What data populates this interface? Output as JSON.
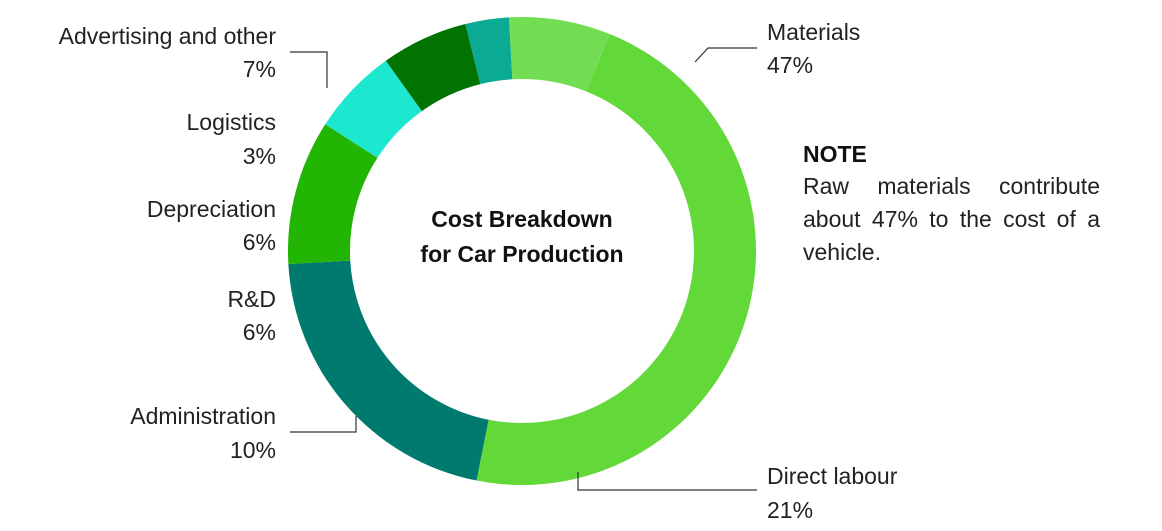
{
  "chart_data": {
    "type": "pie",
    "title": "Cost Breakdown for Car Production",
    "title_lines": [
      "Cost Breakdown",
      "for Car Production"
    ],
    "variant": "donut",
    "slices": [
      {
        "name": "Materials",
        "value": 47,
        "label": "47%",
        "color": "#62d839"
      },
      {
        "name": "Direct labour",
        "value": 21,
        "label": "21%",
        "color": "#007a6e"
      },
      {
        "name": "Administration",
        "value": 10,
        "label": "10%",
        "color": "#22b504"
      },
      {
        "name": "R&D",
        "value": 6,
        "label": "6%",
        "color": "#1de8cf"
      },
      {
        "name": "Depreciation",
        "value": 6,
        "label": "6%",
        "color": "#017301"
      },
      {
        "name": "Logistics",
        "value": 3,
        "label": "3%",
        "color": "#0aaa95"
      },
      {
        "name": "Advertising and other",
        "value": 7,
        "label": "7%",
        "color": "#72dd52"
      }
    ]
  },
  "note": {
    "title": "NOTE",
    "body": "Raw materials contribute about 47% to the cost of a vehicle."
  }
}
